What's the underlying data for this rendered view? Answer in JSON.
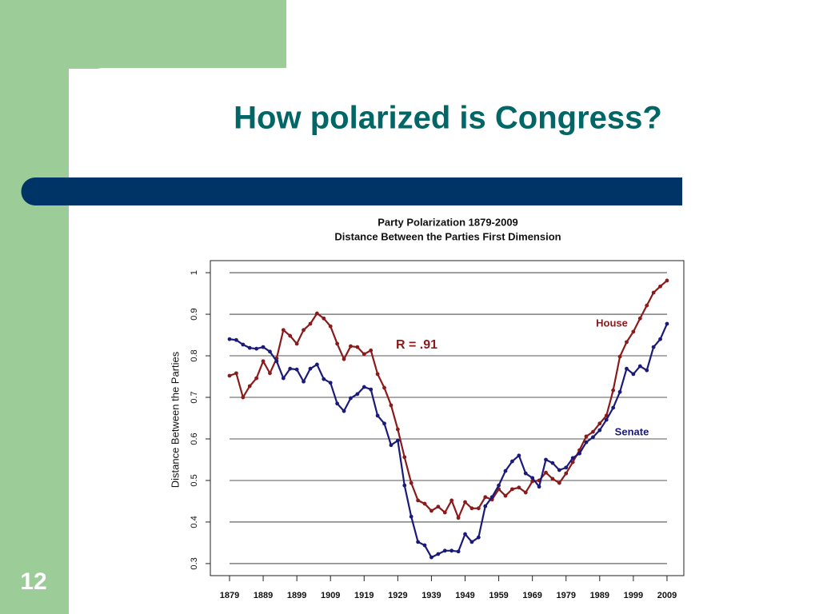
{
  "slide": {
    "title": "How polarized is Congress?",
    "number": "12"
  },
  "chart_data": {
    "type": "line",
    "title": "Party Polarization 1879-2009",
    "subtitle": "Distance Between the Parties First Dimension",
    "y_label": "Distance Between the Parties",
    "annotations": [
      "R = .91"
    ],
    "x": [
      1879,
      1881,
      1883,
      1885,
      1887,
      1889,
      1891,
      1893,
      1895,
      1897,
      1899,
      1901,
      1903,
      1905,
      1907,
      1909,
      1911,
      1913,
      1915,
      1917,
      1919,
      1921,
      1923,
      1925,
      1927,
      1929,
      1931,
      1933,
      1935,
      1937,
      1939,
      1941,
      1943,
      1945,
      1947,
      1949,
      1951,
      1953,
      1955,
      1957,
      1959,
      1961,
      1963,
      1965,
      1967,
      1969,
      1971,
      1973,
      1975,
      1977,
      1979,
      1981,
      1983,
      1985,
      1987,
      1989,
      1991,
      1993,
      1995,
      1997,
      1999,
      2001,
      2003,
      2005,
      2007,
      2009
    ],
    "series": [
      {
        "name": "House",
        "color": "#8b1a1a",
        "values": [
          0.752,
          0.758,
          0.7,
          0.727,
          0.746,
          0.787,
          0.758,
          0.794,
          0.862,
          0.848,
          0.829,
          0.862,
          0.877,
          0.902,
          0.89,
          0.871,
          0.829,
          0.792,
          0.823,
          0.821,
          0.804,
          0.813,
          0.756,
          0.723,
          0.681,
          0.623,
          0.556,
          0.494,
          0.452,
          0.444,
          0.427,
          0.437,
          0.423,
          0.452,
          0.41,
          0.448,
          0.433,
          0.433,
          0.46,
          0.454,
          0.479,
          0.463,
          0.479,
          0.483,
          0.471,
          0.498,
          0.5,
          0.519,
          0.504,
          0.494,
          0.517,
          0.544,
          0.573,
          0.606,
          0.617,
          0.637,
          0.656,
          0.717,
          0.798,
          0.833,
          0.858,
          0.89,
          0.921,
          0.952,
          0.967,
          0.981
        ]
      },
      {
        "name": "Senate",
        "color": "#1a1a7a",
        "values": [
          0.84,
          0.838,
          0.827,
          0.819,
          0.817,
          0.821,
          0.81,
          0.787,
          0.746,
          0.769,
          0.767,
          0.738,
          0.769,
          0.779,
          0.744,
          0.735,
          0.685,
          0.667,
          0.698,
          0.708,
          0.725,
          0.719,
          0.656,
          0.637,
          0.585,
          0.596,
          0.488,
          0.413,
          0.352,
          0.344,
          0.315,
          0.323,
          0.331,
          0.331,
          0.329,
          0.371,
          0.352,
          0.363,
          0.438,
          0.46,
          0.488,
          0.523,
          0.546,
          0.56,
          0.517,
          0.506,
          0.485,
          0.55,
          0.542,
          0.525,
          0.531,
          0.554,
          0.565,
          0.592,
          0.604,
          0.621,
          0.646,
          0.675,
          0.713,
          0.769,
          0.756,
          0.775,
          0.765,
          0.821,
          0.84,
          0.877
        ]
      }
    ],
    "xlim": [
      1873.3,
      2014
    ],
    "xticks": [
      1879,
      1889,
      1899,
      1909,
      1919,
      1929,
      1939,
      1949,
      1959,
      1969,
      1979,
      1989,
      1999,
      2009
    ],
    "ylim": [
      0.271,
      1.029
    ],
    "yticks": [
      0.3,
      0.4,
      0.5,
      0.6,
      0.7,
      0.8,
      0.9,
      1.0
    ],
    "grid": true
  }
}
